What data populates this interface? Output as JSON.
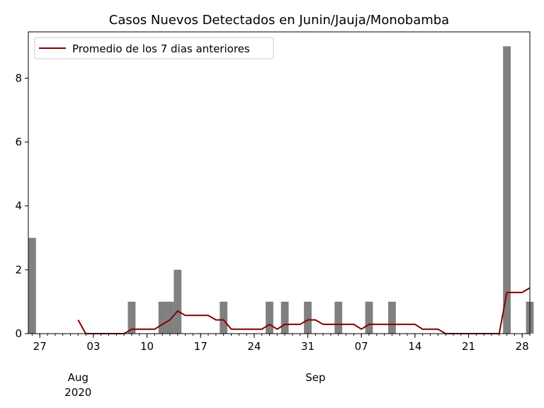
{
  "chart_data": {
    "type": "bar",
    "title": "Casos Nuevos Detectados en Junin/Jauja/Monobamba",
    "xlabel": "",
    "ylabel": "",
    "x_start": "2020-07-26",
    "dates": [
      "2020-07-26",
      "2020-07-27",
      "2020-07-28",
      "2020-07-29",
      "2020-07-30",
      "2020-07-31",
      "2020-08-01",
      "2020-08-02",
      "2020-08-03",
      "2020-08-04",
      "2020-08-05",
      "2020-08-06",
      "2020-08-07",
      "2020-08-08",
      "2020-08-09",
      "2020-08-10",
      "2020-08-11",
      "2020-08-12",
      "2020-08-13",
      "2020-08-14",
      "2020-08-15",
      "2020-08-16",
      "2020-08-17",
      "2020-08-18",
      "2020-08-19",
      "2020-08-20",
      "2020-08-21",
      "2020-08-22",
      "2020-08-23",
      "2020-08-24",
      "2020-08-25",
      "2020-08-26",
      "2020-08-27",
      "2020-08-28",
      "2020-08-29",
      "2020-08-30",
      "2020-08-31",
      "2020-09-01",
      "2020-09-02",
      "2020-09-03",
      "2020-09-04",
      "2020-09-05",
      "2020-09-06",
      "2020-09-07",
      "2020-09-08",
      "2020-09-09",
      "2020-09-10",
      "2020-09-11",
      "2020-09-12",
      "2020-09-13",
      "2020-09-14",
      "2020-09-15",
      "2020-09-16",
      "2020-09-17",
      "2020-09-18",
      "2020-09-19",
      "2020-09-20",
      "2020-09-21",
      "2020-09-22",
      "2020-09-23",
      "2020-09-24",
      "2020-09-25",
      "2020-09-26",
      "2020-09-27",
      "2020-09-28",
      "2020-09-29"
    ],
    "series": [
      {
        "name": "",
        "kind": "bar",
        "color": "#808080",
        "values": [
          3,
          0,
          0,
          0,
          0,
          0,
          0,
          0,
          0,
          0,
          0,
          0,
          0,
          1,
          0,
          0,
          0,
          1,
          1,
          2,
          0,
          0,
          0,
          0,
          0,
          1,
          0,
          0,
          0,
          0,
          0,
          1,
          0,
          1,
          0,
          0,
          1,
          0,
          0,
          0,
          1,
          0,
          0,
          0,
          1,
          0,
          0,
          1,
          0,
          0,
          0,
          0,
          0,
          0,
          0,
          0,
          0,
          0,
          0,
          0,
          0,
          0,
          9,
          0,
          0,
          1
        ]
      },
      {
        "name": "Promedio de los 7 dias anteriores",
        "kind": "line",
        "color": "#800000",
        "values": [
          null,
          null,
          null,
          null,
          null,
          null,
          0.43,
          0,
          0,
          0,
          0,
          0,
          0,
          0.14,
          0.14,
          0.14,
          0.14,
          0.29,
          0.43,
          0.71,
          0.57,
          0.57,
          0.57,
          0.57,
          0.43,
          0.43,
          0.14,
          0.14,
          0.14,
          0.14,
          0.14,
          0.29,
          0.14,
          0.29,
          0.29,
          0.29,
          0.43,
          0.43,
          0.29,
          0.29,
          0.29,
          0.29,
          0.29,
          0.14,
          0.29,
          0.29,
          0.29,
          0.29,
          0.29,
          0.29,
          0.29,
          0.14,
          0.14,
          0.14,
          0,
          0,
          0,
          0,
          0,
          0,
          0,
          0,
          1.29,
          1.29,
          1.29,
          1.43
        ]
      }
    ],
    "ylim": [
      0,
      9.45
    ],
    "yticks": [
      0,
      2,
      4,
      6,
      8
    ],
    "x_major_ticks": [
      "2020-07-27",
      "2020-08-03",
      "2020-08-10",
      "2020-08-17",
      "2020-08-24",
      "2020-08-31",
      "2020-09-07",
      "2020-09-14",
      "2020-09-21",
      "2020-09-28"
    ],
    "x_major_labels": [
      "27",
      "03",
      "10",
      "17",
      "24",
      "31",
      "07",
      "14",
      "21",
      "28"
    ],
    "month_labels": [
      {
        "date": "2020-08-01",
        "label": "Aug",
        "sub": "2020"
      },
      {
        "date": "2020-09-01",
        "label": "Sep",
        "sub": ""
      }
    ],
    "legend": {
      "placement": "upper-left",
      "entries": [
        "Promedio de los 7 dias anteriores"
      ]
    },
    "grid": false
  }
}
